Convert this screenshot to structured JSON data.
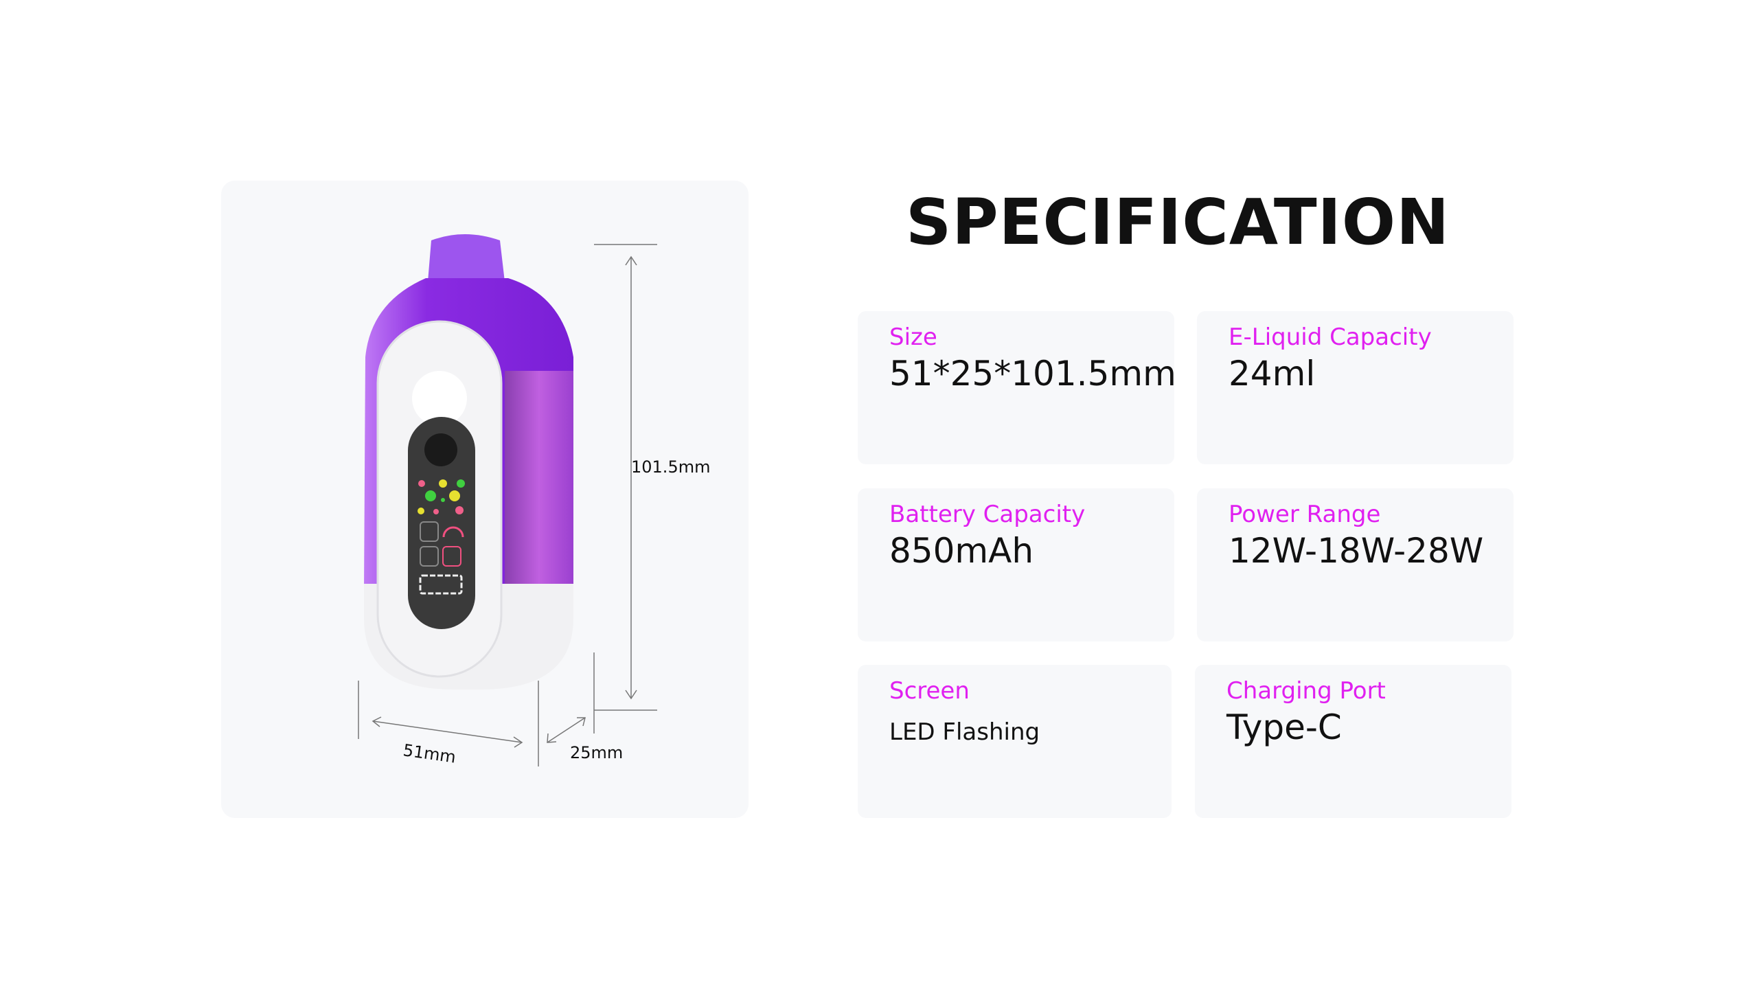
{
  "heading": "SPECIFICATION",
  "product_image": {
    "dimension_labels": {
      "height": "101.5mm",
      "width": "51mm",
      "depth": "25mm"
    },
    "colors": {
      "body": "#8a2be2",
      "accent": "#b04cf0",
      "base": "#f2f2f2",
      "screen": "#3a3a3a"
    }
  },
  "specs": [
    {
      "label": "Size",
      "value": "51*25*101.5mm"
    },
    {
      "label": "E-Liquid Capacity",
      "value": "24ml"
    },
    {
      "label": "Battery Capacity",
      "value": "850mAh"
    },
    {
      "label": "Power Range",
      "value": "12W-18W-28W"
    },
    {
      "label": "Screen",
      "value": "LED Flashing"
    },
    {
      "label": "Charging Port",
      "value": "Type-C"
    }
  ],
  "label_color": "#e020f0"
}
